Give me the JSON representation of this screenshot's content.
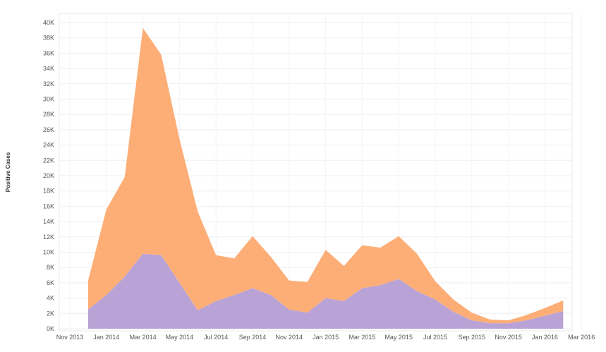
{
  "chart_data": {
    "type": "area",
    "stacked": true,
    "title": "",
    "xlabel": "",
    "ylabel": "Positive Cases",
    "ylim": [
      0,
      40000
    ],
    "grid": true,
    "legend": "none",
    "x_ticks": [
      "Nov 2013",
      "Jan 2014",
      "Mar 2014",
      "May 2014",
      "Jul 2014",
      "Sep 2014",
      "Nov 2014",
      "Jan 2015",
      "Mar 2015",
      "May 2015",
      "Jul 2015",
      "Sep 2015",
      "Nov 2015",
      "Jan 2016",
      "Mar 2016"
    ],
    "y_ticks": [
      "0K",
      "2K",
      "4K",
      "6K",
      "8K",
      "10K",
      "12K",
      "14K",
      "16K",
      "18K",
      "20K",
      "22K",
      "24K",
      "26K",
      "28K",
      "30K",
      "32K",
      "34K",
      "36K",
      "38K",
      "40K"
    ],
    "x": [
      "2013-12",
      "2014-01",
      "2014-02",
      "2014-03",
      "2014-04",
      "2014-05",
      "2014-06",
      "2014-07",
      "2014-08",
      "2014-09",
      "2014-10",
      "2014-11",
      "2014-12",
      "2015-01",
      "2015-02",
      "2015-03",
      "2015-04",
      "2015-05",
      "2015-06",
      "2015-07",
      "2015-08",
      "2015-09",
      "2015-10",
      "2015-11",
      "2015-12",
      "2016-01",
      "2016-02"
    ],
    "series": [
      {
        "color": "#b9a3d6",
        "values": [
          2500,
          4400,
          6800,
          9800,
          9600,
          6000,
          2400,
          3600,
          4400,
          5300,
          4400,
          2500,
          2100,
          4000,
          3600,
          5300,
          5700,
          6500,
          4900,
          3800,
          2200,
          1100,
          700,
          700,
          1100,
          1700,
          2300
        ]
      },
      {
        "color": "#fdae77",
        "values": [
          3800,
          11200,
          13000,
          29500,
          26200,
          18800,
          12900,
          6000,
          4800,
          6800,
          5000,
          3800,
          4000,
          6300,
          4600,
          5600,
          4900,
          5600,
          4900,
          2400,
          1600,
          1000,
          500,
          400,
          700,
          1000,
          1400
        ]
      }
    ]
  }
}
